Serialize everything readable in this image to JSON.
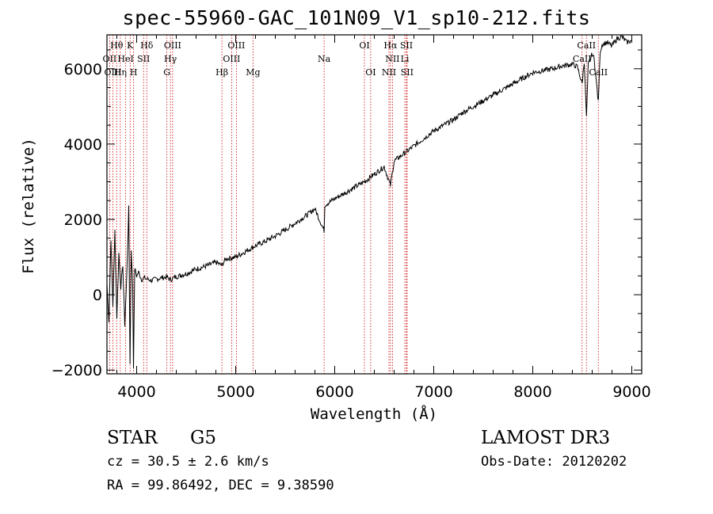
{
  "chart_data": {
    "type": "line",
    "title": "spec-55960-GAC_101N09_V1_sp10-212.fits",
    "xlabel": "Wavelength (Å)",
    "ylabel": "Flux (relative)",
    "xlim": [
      3700,
      9100
    ],
    "ylim": [
      -2100,
      6900
    ],
    "x_ticks": [
      4000,
      5000,
      6000,
      7000,
      8000,
      9000
    ],
    "x_tick_labels": [
      "4000",
      "5000",
      "6000",
      "7000",
      "8000",
      "9000"
    ],
    "y_ticks": [
      -2000,
      0,
      2000,
      4000,
      6000
    ],
    "y_tick_labels": [
      "−2000",
      "0",
      "2000",
      "4000",
      "6000"
    ],
    "grid": false,
    "series": [
      {
        "name": "flux",
        "x": [
          3700,
          3720,
          3740,
          3760,
          3780,
          3800,
          3820,
          3840,
          3860,
          3880,
          3900,
          3920,
          3933,
          3945,
          3960,
          3968,
          3980,
          4000,
          4020,
          4050,
          4080,
          4100,
          4150,
          4200,
          4250,
          4300,
          4340,
          4400,
          4500,
          4600,
          4700,
          4800,
          4860,
          4900,
          5000,
          5100,
          5200,
          5300,
          5400,
          5500,
          5600,
          5700,
          5800,
          5893,
          5900,
          6000,
          6100,
          6200,
          6300,
          6400,
          6500,
          6563,
          6600,
          6700,
          6800,
          6900,
          7000,
          7100,
          7200,
          7300,
          7400,
          7500,
          7600,
          7700,
          7800,
          7900,
          8000,
          8100,
          8200,
          8300,
          8400,
          8450,
          8498,
          8520,
          8542,
          8560,
          8600,
          8620,
          8662,
          8680,
          8700,
          8750,
          8800,
          8850,
          8900,
          8950,
          9000
        ],
        "y": [
          300,
          -700,
          1500,
          -300,
          1700,
          -600,
          1100,
          200,
          800,
          -800,
          500,
          2300,
          -1800,
          1200,
          200,
          -1900,
          700,
          500,
          600,
          400,
          450,
          420,
          380,
          420,
          450,
          470,
          400,
          480,
          560,
          680,
          760,
          860,
          780,
          950,
          1000,
          1150,
          1300,
          1420,
          1560,
          1720,
          1900,
          2080,
          2280,
          1700,
          2380,
          2550,
          2700,
          2850,
          3000,
          3200,
          3400,
          2900,
          3550,
          3750,
          3950,
          4150,
          4350,
          4500,
          4650,
          4850,
          5000,
          5150,
          5300,
          5450,
          5600,
          5750,
          5900,
          5950,
          6000,
          6080,
          6120,
          6050,
          5600,
          6200,
          4700,
          6100,
          6400,
          6250,
          5100,
          6450,
          6650,
          6700,
          6600,
          6800,
          6850,
          6700,
          6750
        ]
      }
    ],
    "lines": [
      {
        "label": "Hθ",
        "wavelength": 3798,
        "row": 1
      },
      {
        "label": "OII",
        "wavelength": 3727,
        "row": 2
      },
      {
        "label": "OIII",
        "wavelength": 3760,
        "row": 3
      },
      {
        "label": "Hη",
        "wavelength": 3835,
        "row": 3
      },
      {
        "label": "K",
        "wavelength": 3934,
        "row": 1
      },
      {
        "label": "HeI",
        "wavelength": 3889,
        "row": 2
      },
      {
        "label": "H",
        "wavelength": 3969,
        "row": 3
      },
      {
        "label": "Hδ",
        "wavelength": 4102,
        "row": 1
      },
      {
        "label": "SII",
        "wavelength": 4070,
        "row": 2
      },
      {
        "label": "OIII",
        "wavelength": 4363,
        "row": 1
      },
      {
        "label": "Hγ",
        "wavelength": 4341,
        "row": 2
      },
      {
        "label": "G",
        "wavelength": 4305,
        "row": 3
      },
      {
        "label": "OIII",
        "wavelength": 5007,
        "row": 1
      },
      {
        "label": "OIII",
        "wavelength": 4959,
        "row": 2
      },
      {
        "label": "Hβ",
        "wavelength": 4861,
        "row": 3
      },
      {
        "label": "Mg",
        "wavelength": 5175,
        "row": 3
      },
      {
        "label": "Na",
        "wavelength": 5893,
        "row": 2
      },
      {
        "label": "OI",
        "wavelength": 6300,
        "row": 1
      },
      {
        "label": "OI",
        "wavelength": 6363,
        "row": 3
      },
      {
        "label": "Hα",
        "wavelength": 6563,
        "row": 1
      },
      {
        "label": "SII",
        "wavelength": 6724,
        "row": 1
      },
      {
        "label": "NII",
        "wavelength": 6583,
        "row": 2
      },
      {
        "label": "Li",
        "wavelength": 6708,
        "row": 2
      },
      {
        "label": "NII",
        "wavelength": 6548,
        "row": 3
      },
      {
        "label": "SII",
        "wavelength": 6731,
        "row": 3
      },
      {
        "label": "CaII",
        "wavelength": 8542,
        "row": 1
      },
      {
        "label": "CaII",
        "wavelength": 8498,
        "row": 2
      },
      {
        "label": "CaII",
        "wavelength": 8662,
        "row": 3
      }
    ]
  },
  "info": {
    "object_type": "STAR",
    "subclass": "G5",
    "survey": "LAMOST DR3",
    "cz": "cz = 30.5 ± 2.6 km/s",
    "obs_date": "Obs-Date: 20120202",
    "coords": "RA =  99.86492, DEC =   9.38590"
  },
  "colors": {
    "spectrum": "#000000",
    "line_markers": "#cc0000",
    "axes": "#000000",
    "background": "#ffffff"
  }
}
